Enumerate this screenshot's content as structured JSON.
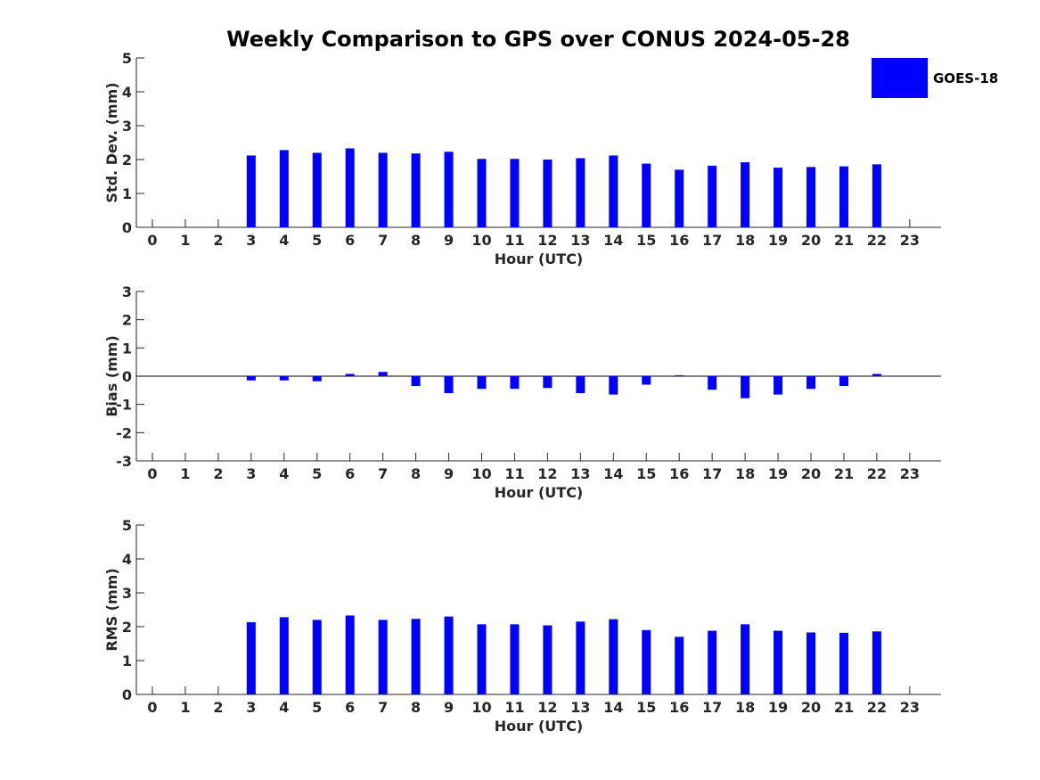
{
  "chart_data": {
    "type": "bar",
    "title": "Weekly Comparison to GPS over CONUS 2024-05-28",
    "legend": {
      "entries": [
        "GOES-18"
      ],
      "placement": "top-right"
    },
    "series_color": "#0000ff",
    "categories": [
      "0",
      "1",
      "2",
      "3",
      "4",
      "5",
      "6",
      "7",
      "8",
      "9",
      "10",
      "11",
      "12",
      "13",
      "14",
      "15",
      "16",
      "17",
      "18",
      "19",
      "20",
      "21",
      "22",
      "23"
    ],
    "panels": [
      {
        "id": "std",
        "ylabel": "Std. Dev. (mm)",
        "xlabel": "Hour (UTC)",
        "ylim": [
          0,
          5
        ],
        "yticks": [
          0,
          1,
          2,
          3,
          4,
          5
        ],
        "series": [
          {
            "name": "GOES-18",
            "values": [
              null,
              null,
              null,
              2.12,
              2.28,
              2.2,
              2.33,
              2.2,
              2.18,
              2.23,
              2.02,
              2.02,
              2.0,
              2.04,
              2.12,
              1.88,
              1.7,
              1.82,
              1.92,
              1.76,
              1.78,
              1.8,
              1.86,
              null
            ]
          }
        ]
      },
      {
        "id": "bias",
        "ylabel": "Bias (mm)",
        "xlabel": "Hour (UTC)",
        "ylim": [
          -3,
          3
        ],
        "yticks": [
          -3,
          -2,
          -1,
          0,
          1,
          2,
          3
        ],
        "zero_line": true,
        "series": [
          {
            "name": "GOES-18",
            "values": [
              null,
              null,
              null,
              -0.15,
              -0.15,
              -0.18,
              0.08,
              0.15,
              -0.35,
              -0.6,
              -0.45,
              -0.45,
              -0.42,
              -0.6,
              -0.65,
              -0.3,
              0.03,
              -0.48,
              -0.78,
              -0.65,
              -0.45,
              -0.35,
              0.08,
              null
            ]
          }
        ]
      },
      {
        "id": "rms",
        "ylabel": "RMS (mm)",
        "xlabel": "Hour (UTC)",
        "ylim": [
          0,
          5
        ],
        "yticks": [
          0,
          1,
          2,
          3,
          4,
          5
        ],
        "series": [
          {
            "name": "GOES-18",
            "values": [
              null,
              null,
              null,
              2.13,
              2.28,
              2.2,
              2.33,
              2.2,
              2.23,
              2.3,
              2.07,
              2.07,
              2.04,
              2.15,
              2.22,
              1.9,
              1.7,
              1.88,
              2.07,
              1.88,
              1.83,
              1.82,
              1.86,
              null
            ]
          }
        ]
      }
    ]
  }
}
